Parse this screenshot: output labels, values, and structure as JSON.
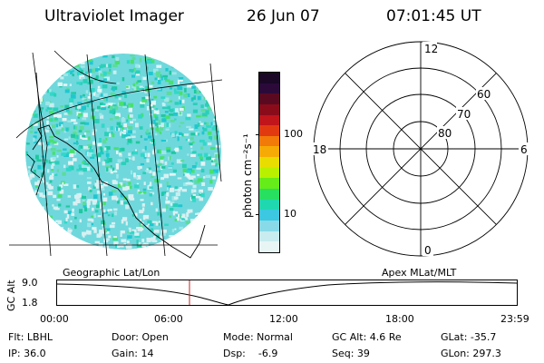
{
  "header": {
    "instrument": "Ultraviolet Imager",
    "date": "26 Jun 07",
    "time": "07:01:45 UT"
  },
  "colorbar": {
    "unit_label": "photon cm⁻²s⁻¹",
    "tick_labels": [
      "100",
      "10"
    ],
    "ticks": [
      100,
      10
    ],
    "colors": [
      "#1a0826",
      "#2b0a3a",
      "#5a0a20",
      "#8a0c1a",
      "#c0151a",
      "#e23a10",
      "#f27a08",
      "#f6aa05",
      "#e8dc00",
      "#b8f000",
      "#66ec18",
      "#28e060",
      "#20d8b0",
      "#3cc8e0",
      "#88dae8",
      "#c8ecef",
      "#e8f5f5"
    ]
  },
  "polar": {
    "mlt_labels": {
      "top": "12",
      "left": "18",
      "right": "6",
      "bottom": "0"
    },
    "mlat_labels": [
      "80",
      "70",
      "60"
    ]
  },
  "map": {
    "label": "Geographic Lat/Lon"
  },
  "apex": {
    "label": "Apex MLat/MLT"
  },
  "timeline": {
    "ylabel": "GC Alt",
    "y_ticks": [
      "9.0",
      "1.8"
    ],
    "x_ticks": [
      "00:00",
      "06:00",
      "12:00",
      "18:00",
      "23:59"
    ],
    "marker_color": "#c82020"
  },
  "status": {
    "filter": "Flt: LBHL",
    "door": "Door: Open",
    "mode": "Mode: Normal",
    "gc_alt": "GC Alt: 4.6 Re",
    "glat": "GLat: -35.7",
    "ip": "IP: 36.0",
    "gain": "Gain: 14",
    "dsp": "Dsp:    -6.9",
    "seq": "Seq: 39",
    "glon": "GLon: 297.3"
  }
}
